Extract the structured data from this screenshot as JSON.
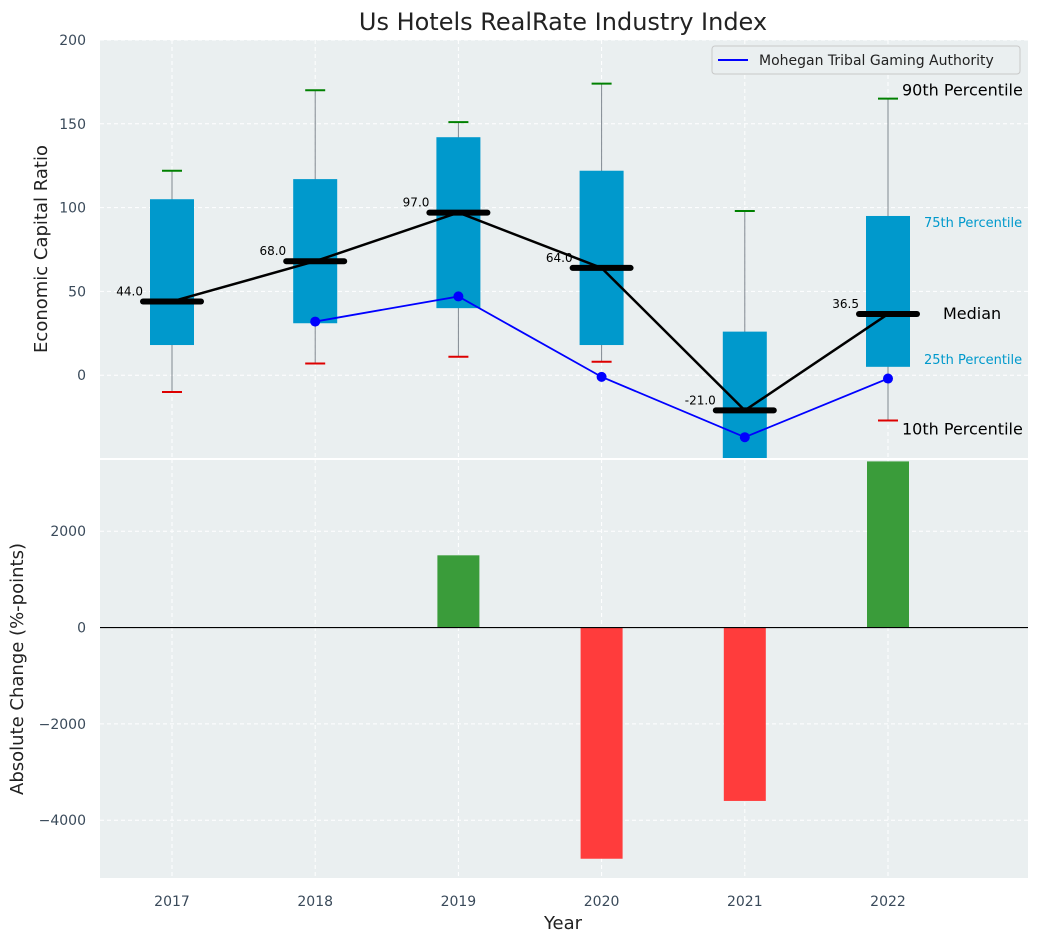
{
  "chart_data": [
    {
      "type": "box",
      "title": "Us Hotels RealRate Industry Index",
      "ylabel": "Economic Capital Ratio",
      "ylim": [
        -50,
        200
      ],
      "yticks": [
        0,
        50,
        100,
        150,
        200
      ],
      "grid": true,
      "legend": {
        "position": "top-right",
        "entries": [
          "Mohegan Tribal Gaming Authority"
        ]
      },
      "categories": [
        "2017",
        "2018",
        "2019",
        "2020",
        "2021",
        "2022"
      ],
      "p10": [
        -10,
        7,
        11,
        8,
        null,
        -27
      ],
      "p25": [
        18,
        31,
        40,
        18,
        -50,
        5
      ],
      "median": [
        44,
        68,
        97,
        64,
        -21,
        36.5
      ],
      "p75": [
        105,
        117,
        142,
        122,
        26,
        95
      ],
      "p90": [
        122,
        170,
        151,
        174,
        98,
        165
      ],
      "median_labels": [
        "44.0",
        "68.0",
        "97.0",
        "64.0",
        "-21.0",
        "36.5"
      ],
      "series": [
        {
          "name": "Mohegan Tribal Gaming Authority",
          "values": [
            null,
            32,
            47,
            -1,
            -37,
            -2
          ]
        }
      ],
      "annotations": [
        "90th Percentile",
        "75th Percentile",
        "Median",
        "25th Percentile",
        "10th Percentile"
      ],
      "colors": {
        "box": "#0099cc",
        "median": "#000000",
        "company": "#0000ff",
        "p90_cap": "#008000",
        "p10_cap": "#dd0000",
        "background": "#eaeff0"
      }
    },
    {
      "type": "bar",
      "xlabel": "Year",
      "ylabel": "Absolute Change (%-points)",
      "ylim": [
        -5200,
        3500
      ],
      "yticks": [
        -4000,
        -2000,
        0,
        2000
      ],
      "ytick_labels": [
        "−4000",
        "−2000",
        "0",
        "2000"
      ],
      "grid": true,
      "categories": [
        "2017",
        "2018",
        "2019",
        "2020",
        "2021",
        "2022"
      ],
      "values": [
        null,
        null,
        1500,
        -4800,
        -3600,
        3450
      ],
      "colors": {
        "positive": "#3a9c3a",
        "negative": "#ff3c3c"
      }
    }
  ]
}
